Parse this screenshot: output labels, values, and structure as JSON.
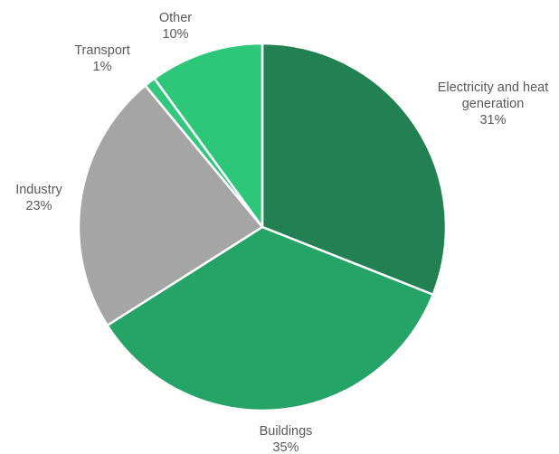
{
  "chart_data": {
    "type": "pie",
    "slices": [
      {
        "name": "Electricity and heat generation",
        "label_lines": [
          "Electricity and heat",
          "generation"
        ],
        "value": 31,
        "value_label": "31%",
        "color": "#238053"
      },
      {
        "name": "Buildings",
        "label_lines": [
          "Buildings"
        ],
        "value": 35,
        "value_label": "35%",
        "color": "#26a468"
      },
      {
        "name": "Industry",
        "label_lines": [
          "Industry"
        ],
        "value": 23,
        "value_label": "23%",
        "color": "#a5a5a5"
      },
      {
        "name": "Transport",
        "label_lines": [
          "Transport"
        ],
        "value": 1,
        "value_label": "1%",
        "color": "#33c87e"
      },
      {
        "name": "Other",
        "label_lines": [
          "Other"
        ],
        "value": 10,
        "value_label": "10%",
        "color": "#2cc778"
      }
    ],
    "start_angle": "12 o'clock",
    "direction": "clockwise",
    "slice_border_color": "#ffffff",
    "legend": "none",
    "labels": "outside"
  }
}
